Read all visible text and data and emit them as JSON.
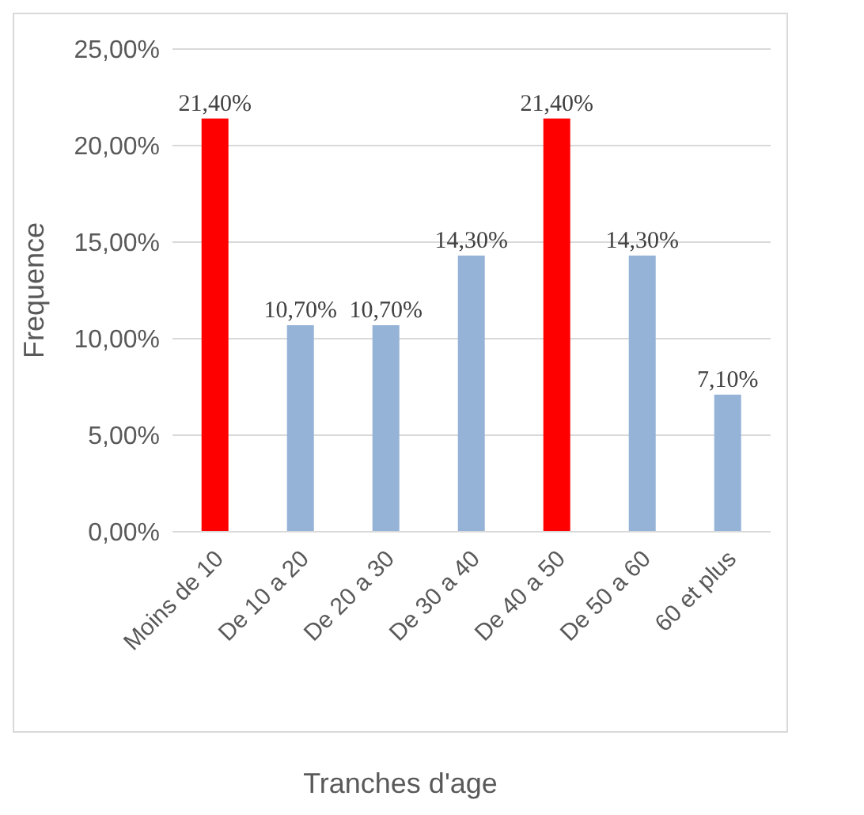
{
  "chart_data": {
    "type": "bar",
    "xlabel": "Tranches d'age",
    "ylabel": "Frequence",
    "categories": [
      "Moins de 10",
      "De 10 a 20",
      "De 20 a 30",
      "De 30 a 40",
      "De 40 a 50",
      "De 50 a 60",
      "60 et plus"
    ],
    "values": [
      21.4,
      10.7,
      10.7,
      14.3,
      21.4,
      14.3,
      7.1
    ],
    "colors": [
      "#ff0000",
      "#95b3d7",
      "#95b3d7",
      "#95b3d7",
      "#ff0000",
      "#95b3d7",
      "#95b3d7"
    ],
    "value_labels": [
      "21,40%",
      "10,70%",
      "10,70%",
      "14,30%",
      "21,40%",
      "14,30%",
      "7,10%"
    ],
    "ylim": [
      0,
      25
    ],
    "yticks": [
      {
        "value": 0,
        "label": "0,00%"
      },
      {
        "value": 5,
        "label": "5,00%"
      },
      {
        "value": 10,
        "label": "10,00%"
      },
      {
        "value": 15,
        "label": "15,00%"
      },
      {
        "value": 20,
        "label": "20,00%"
      },
      {
        "value": 25,
        "label": "25,00%"
      }
    ],
    "grid": "y",
    "legend": false
  }
}
